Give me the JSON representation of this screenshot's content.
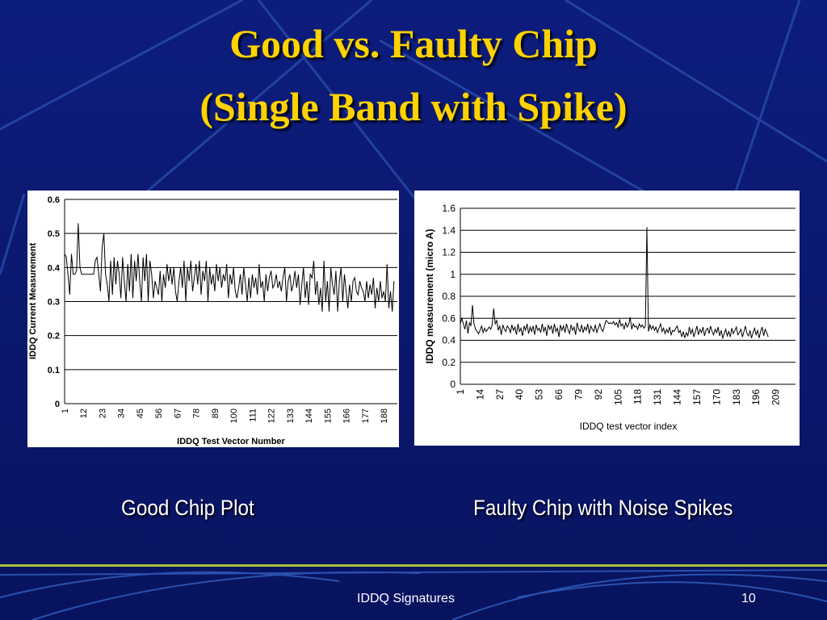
{
  "slide": {
    "title_line1": "Good vs. Faulty Chip",
    "title_line2": "(Single Band with Spike)",
    "caption_left": "Good Chip Plot",
    "caption_right": "Faulty Chip with Noise Spikes",
    "footer_text": "IDDQ Signatures",
    "page_number": "10"
  },
  "colors": {
    "background": "#0a1870",
    "title": "#ffd200",
    "footer_line": "#a7c23a"
  },
  "chart_data": [
    {
      "type": "line",
      "xlabel": "IDDQ Test Vector Number",
      "ylabel": "IDDQ Current Measurement",
      "ylim": [
        0,
        0.6
      ],
      "yticks": [
        "0",
        "0.1",
        "0.2",
        "0.3",
        "0.4",
        "0.5",
        "0.6"
      ],
      "xticks": [
        "1",
        "12",
        "23",
        "34",
        "45",
        "56",
        "67",
        "78",
        "89",
        "100",
        "111",
        "122",
        "133",
        "144",
        "155",
        "166",
        "177",
        "188"
      ],
      "xlim": [
        1,
        196
      ],
      "grid": "horizontal",
      "series": [
        {
          "values": [
            0.44,
            0.43,
            0.38,
            0.32,
            0.44,
            0.38,
            0.38,
            0.39,
            0.53,
            0.4,
            0.38,
            0.38,
            0.38,
            0.38,
            0.38,
            0.38,
            0.38,
            0.38,
            0.42,
            0.43,
            0.38,
            0.33,
            0.46,
            0.5,
            0.38,
            0.35,
            0.3,
            0.42,
            0.32,
            0.43,
            0.35,
            0.42,
            0.38,
            0.31,
            0.43,
            0.36,
            0.3,
            0.41,
            0.33,
            0.44,
            0.31,
            0.42,
            0.36,
            0.44,
            0.36,
            0.3,
            0.43,
            0.36,
            0.44,
            0.3,
            0.42,
            0.38,
            0.31,
            0.36,
            0.34,
            0.32,
            0.39,
            0.3,
            0.38,
            0.34,
            0.41,
            0.36,
            0.4,
            0.35,
            0.4,
            0.33,
            0.3,
            0.36,
            0.4,
            0.34,
            0.42,
            0.3,
            0.4,
            0.36,
            0.42,
            0.33,
            0.37,
            0.41,
            0.35,
            0.42,
            0.32,
            0.39,
            0.36,
            0.42,
            0.3,
            0.4,
            0.35,
            0.38,
            0.33,
            0.41,
            0.36,
            0.4,
            0.34,
            0.38,
            0.36,
            0.41,
            0.31,
            0.38,
            0.35,
            0.4,
            0.33,
            0.31,
            0.34,
            0.38,
            0.32,
            0.4,
            0.35,
            0.3,
            0.37,
            0.31,
            0.38,
            0.34,
            0.37,
            0.32,
            0.41,
            0.34,
            0.36,
            0.3,
            0.38,
            0.33,
            0.37,
            0.39,
            0.34,
            0.35,
            0.38,
            0.34,
            0.36,
            0.33,
            0.37,
            0.4,
            0.3,
            0.36,
            0.38,
            0.33,
            0.35,
            0.39,
            0.34,
            0.38,
            0.29,
            0.35,
            0.4,
            0.31,
            0.36,
            0.29,
            0.38,
            0.37,
            0.42,
            0.32,
            0.36,
            0.29,
            0.34,
            0.27,
            0.42,
            0.3,
            0.36,
            0.27,
            0.4,
            0.35,
            0.32,
            0.39,
            0.27,
            0.36,
            0.4,
            0.3,
            0.38,
            0.33,
            0.28,
            0.35,
            0.3,
            0.36,
            0.37,
            0.33,
            0.32,
            0.36,
            0.34,
            0.33,
            0.3,
            0.36,
            0.31,
            0.35,
            0.32,
            0.37,
            0.28,
            0.34,
            0.3,
            0.36,
            0.31,
            0.33,
            0.3,
            0.41,
            0.28,
            0.33,
            0.27,
            0.36
          ]
        }
      ]
    },
    {
      "type": "line",
      "xlabel": "IDDQ test vector index",
      "ylabel": "IDDQ measurement (micro A)",
      "ylim": [
        0,
        1.6
      ],
      "yticks": [
        "0",
        "0.2",
        "0.4",
        "0.6",
        "0.8",
        "1",
        "1.2",
        "1.4",
        "1.6"
      ],
      "xticks": [
        "1",
        "14",
        "27",
        "40",
        "53",
        "66",
        "79",
        "92",
        "105",
        "118",
        "131",
        "144",
        "157",
        "170",
        "183",
        "196",
        "209"
      ],
      "xlim": [
        1,
        222
      ],
      "grid": "horizontal",
      "series": [
        {
          "values": [
            0.55,
            0.6,
            0.55,
            0.5,
            0.58,
            0.46,
            0.56,
            0.53,
            0.72,
            0.55,
            0.5,
            0.48,
            0.46,
            0.49,
            0.53,
            0.47,
            0.51,
            0.48,
            0.5,
            0.52,
            0.5,
            0.54,
            0.69,
            0.55,
            0.58,
            0.49,
            0.53,
            0.45,
            0.54,
            0.5,
            0.48,
            0.53,
            0.51,
            0.47,
            0.54,
            0.49,
            0.52,
            0.45,
            0.55,
            0.48,
            0.51,
            0.44,
            0.53,
            0.49,
            0.55,
            0.46,
            0.52,
            0.48,
            0.53,
            0.45,
            0.54,
            0.49,
            0.51,
            0.47,
            0.55,
            0.48,
            0.52,
            0.44,
            0.54,
            0.5,
            0.53,
            0.46,
            0.55,
            0.48,
            0.51,
            0.43,
            0.54,
            0.49,
            0.53,
            0.47,
            0.55,
            0.5,
            0.46,
            0.54,
            0.49,
            0.52,
            0.45,
            0.56,
            0.5,
            0.48,
            0.54,
            0.47,
            0.52,
            0.49,
            0.55,
            0.46,
            0.53,
            0.5,
            0.48,
            0.54,
            0.47,
            0.51,
            0.55,
            0.5,
            0.48,
            0.53,
            0.58,
            0.57,
            0.55,
            0.56,
            0.55,
            0.57,
            0.54,
            0.56,
            0.52,
            0.59,
            0.53,
            0.55,
            0.5,
            0.56,
            0.52,
            0.54,
            0.61,
            0.5,
            0.55,
            0.52,
            0.53,
            0.5,
            0.55,
            0.52,
            0.54,
            0.51,
            0.53,
            1.43,
            0.48,
            0.54,
            0.5,
            0.53,
            0.49,
            0.52,
            0.47,
            0.51,
            0.55,
            0.48,
            0.51,
            0.46,
            0.5,
            0.47,
            0.52,
            0.45,
            0.49,
            0.48,
            0.51,
            0.53,
            0.47,
            0.49,
            0.43,
            0.48,
            0.42,
            0.47,
            0.44,
            0.52,
            0.46,
            0.5,
            0.43,
            0.48,
            0.53,
            0.45,
            0.5,
            0.47,
            0.52,
            0.44,
            0.49,
            0.51,
            0.46,
            0.53,
            0.48,
            0.45,
            0.5,
            0.47,
            0.52,
            0.44,
            0.49,
            0.42,
            0.46,
            0.5,
            0.44,
            0.48,
            0.43,
            0.51,
            0.46,
            0.49,
            0.52,
            0.45,
            0.47,
            0.5,
            0.43,
            0.48,
            0.53,
            0.46,
            0.44,
            0.49,
            0.42,
            0.47,
            0.51,
            0.45,
            0.49,
            0.42,
            0.48,
            0.52,
            0.44,
            0.5,
            0.47,
            0.43
          ]
        }
      ]
    }
  ]
}
